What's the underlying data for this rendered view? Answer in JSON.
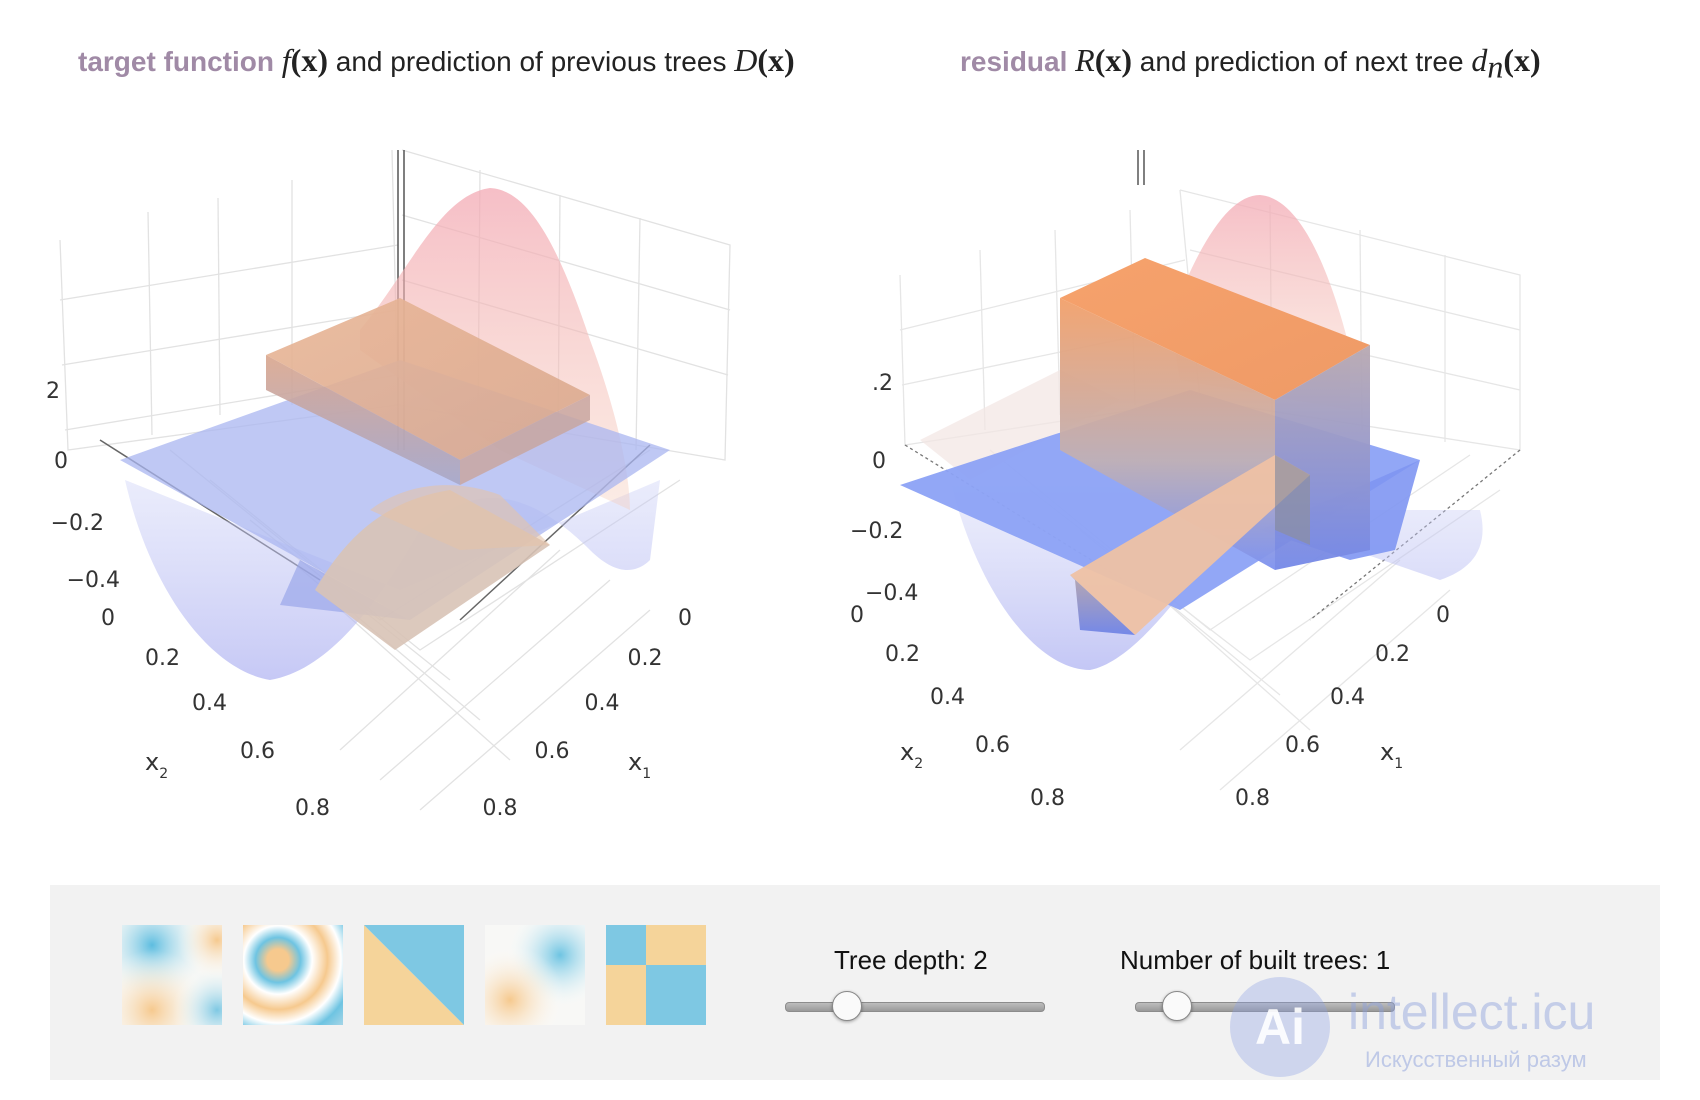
{
  "left_panel": {
    "title_keyword": "target function",
    "title_func": "f",
    "title_arg": "(x)",
    "title_middle": " and prediction of previous trees ",
    "title_pred": "D",
    "title_pred_arg": "(x)",
    "z_ticks": [
      "2",
      "0",
      "−0.2",
      "−0.4"
    ],
    "x2_ticks": [
      "0",
      "0.2",
      "0.4",
      "0.6",
      "0.8"
    ],
    "x1_ticks": [
      "0",
      "0.2",
      "0.4",
      "0.6",
      "0.8"
    ],
    "x2_label": "x",
    "x2_sub": "2",
    "x1_label": "x",
    "x1_sub": "1"
  },
  "right_panel": {
    "title_keyword": "residual",
    "title_func": "R",
    "title_arg": "(x)",
    "title_middle": " and prediction of next tree ",
    "title_pred": "d",
    "title_pred_sub": "n",
    "title_pred_arg": "(x)",
    "z_ticks": [
      ".2",
      "0",
      "−0.2",
      "−0.4"
    ],
    "x2_ticks": [
      "0",
      "0.2",
      "0.4",
      "0.6",
      "0.8"
    ],
    "x1_ticks": [
      "0",
      "0.2",
      "0.4",
      "0.6",
      "0.8"
    ],
    "x2_label": "x",
    "x2_sub": "2",
    "x1_label": "x",
    "x1_sub": "1"
  },
  "colors": {
    "keyword": "#a08aa6",
    "surface_low": "#8fa3f5",
    "surface_high": "#f2a070",
    "preset_blue": "#7ec8e3",
    "preset_orange": "#f5d49a",
    "panel_bg": "#f2f2f2"
  },
  "presets": [
    {
      "name": "preset-quadrant-gradient",
      "icon": "quadrant-gradient-icon"
    },
    {
      "name": "preset-rings",
      "icon": "rings-icon"
    },
    {
      "name": "preset-diagonal-split",
      "icon": "diagonal-split-icon"
    },
    {
      "name": "preset-diagonal-gradient",
      "icon": "diagonal-gradient-icon"
    },
    {
      "name": "preset-checkerboard",
      "icon": "checkerboard-icon"
    }
  ],
  "controls": {
    "tree_depth_label": "Tree depth: 2",
    "tree_depth_value": 2,
    "trees_label": "Number of built trees: 1",
    "trees_value": 1
  },
  "watermark": {
    "logo": "Ai",
    "main": "intellect.icu",
    "sub": "Искусственный разум"
  }
}
